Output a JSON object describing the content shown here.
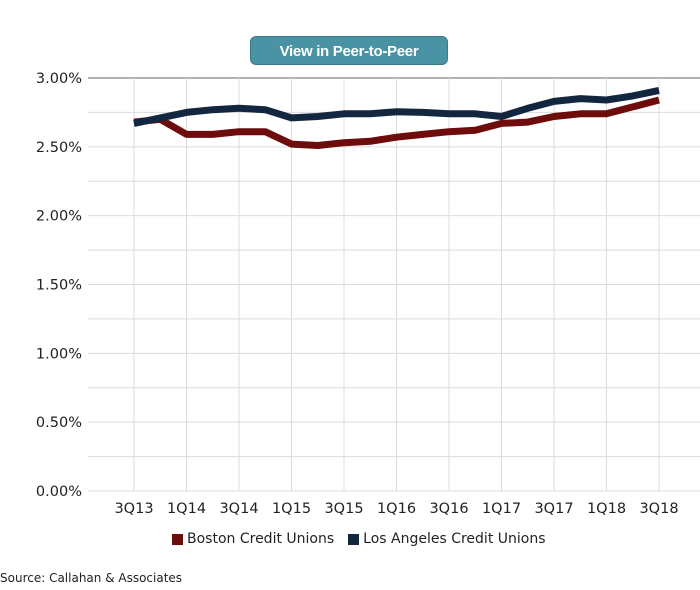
{
  "button": {
    "label": "View in Peer-to-Peer"
  },
  "chart_data": {
    "type": "line",
    "title": "",
    "xlabel": "",
    "ylabel": "",
    "x": [
      "3Q13",
      "4Q13",
      "1Q14",
      "2Q14",
      "3Q14",
      "4Q14",
      "1Q15",
      "2Q15",
      "3Q15",
      "4Q15",
      "1Q16",
      "2Q16",
      "3Q16",
      "4Q16",
      "1Q17",
      "2Q17",
      "3Q17",
      "4Q17",
      "1Q18",
      "2Q18",
      "3Q18"
    ],
    "x_tick_labels": [
      "3Q13",
      "1Q14",
      "3Q14",
      "1Q15",
      "3Q15",
      "1Q16",
      "3Q16",
      "1Q17",
      "3Q17",
      "1Q18",
      "3Q18"
    ],
    "y_tick_labels": [
      "0.00%",
      "0.50%",
      "1.00%",
      "1.50%",
      "2.00%",
      "2.50%",
      "3.00%"
    ],
    "ylim": [
      0,
      3.0
    ],
    "grid": true,
    "legend_position": "bottom",
    "series": [
      {
        "name": "Boston Credit Unions",
        "color": "#6e0b0b",
        "values": [
          2.68,
          2.7,
          2.59,
          2.59,
          2.61,
          2.61,
          2.52,
          2.51,
          2.53,
          2.54,
          2.57,
          2.59,
          2.61,
          2.62,
          2.67,
          2.68,
          2.72,
          2.74,
          2.74,
          2.79,
          2.84
        ]
      },
      {
        "name": "Los Angeles Credit Unions",
        "color": "#13263f",
        "values": [
          2.67,
          2.71,
          2.75,
          2.77,
          2.78,
          2.77,
          2.71,
          2.72,
          2.74,
          2.74,
          2.755,
          2.75,
          2.74,
          2.74,
          2.72,
          2.78,
          2.83,
          2.85,
          2.84,
          2.87,
          2.91
        ]
      }
    ]
  },
  "source": "Source: Callahan & Associates"
}
